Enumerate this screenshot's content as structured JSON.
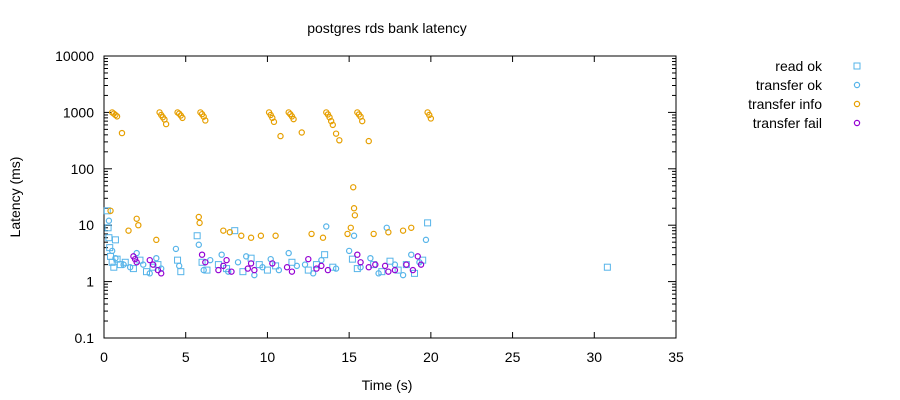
{
  "chart_data": {
    "type": "scatter",
    "title": "postgres rds bank latency",
    "xlabel": "Time (s)",
    "ylabel": "Latency (ms)",
    "xlim": [
      0,
      35
    ],
    "ylim": [
      0.1,
      10000
    ],
    "yscale": "log",
    "xticks": [
      0,
      5,
      10,
      15,
      20,
      25,
      30,
      35
    ],
    "yticks": [
      0.1,
      1,
      10,
      100,
      1000,
      10000
    ],
    "ytick_labels": [
      "0.1",
      "1",
      "10",
      "100",
      "1000",
      "10000"
    ],
    "grid": false,
    "legend_position": "top-right-outside",
    "series": [
      {
        "name": "read ok",
        "marker": "square",
        "color": "#56b4e9",
        "points": [
          [
            0.2,
            18
          ],
          [
            0.25,
            9
          ],
          [
            0.3,
            6
          ],
          [
            0.35,
            4
          ],
          [
            0.4,
            2.8
          ],
          [
            0.5,
            2.2
          ],
          [
            0.6,
            1.8
          ],
          [
            0.7,
            5.5
          ],
          [
            0.8,
            2.5
          ],
          [
            1.0,
            2.0
          ],
          [
            1.3,
            2.2
          ],
          [
            1.8,
            1.7
          ],
          [
            2.2,
            2.4
          ],
          [
            2.6,
            1.5
          ],
          [
            3.0,
            1.8
          ],
          [
            3.3,
            2.0
          ],
          [
            4.5,
            2.4
          ],
          [
            4.7,
            1.5
          ],
          [
            5.7,
            6.5
          ],
          [
            6.0,
            2.2
          ],
          [
            6.3,
            1.6
          ],
          [
            7.0,
            2.0
          ],
          [
            7.5,
            1.7
          ],
          [
            8.0,
            8.0
          ],
          [
            8.5,
            1.5
          ],
          [
            9.0,
            2.6
          ],
          [
            9.5,
            2.0
          ],
          [
            10.0,
            1.6
          ],
          [
            10.5,
            1.9
          ],
          [
            11.5,
            2.2
          ],
          [
            12.5,
            1.6
          ],
          [
            13.0,
            2.0
          ],
          [
            13.5,
            3.0
          ],
          [
            14.0,
            1.8
          ],
          [
            15.2,
            2.5
          ],
          [
            15.5,
            1.7
          ],
          [
            16.5,
            2.0
          ],
          [
            17.0,
            1.5
          ],
          [
            17.5,
            2.3
          ],
          [
            18.0,
            1.6
          ],
          [
            18.5,
            2.0
          ],
          [
            19.0,
            1.4
          ],
          [
            19.5,
            2.4
          ],
          [
            19.8,
            11
          ],
          [
            30.8,
            1.8
          ]
        ]
      },
      {
        "name": "transfer ok",
        "marker": "circle",
        "color": "#56b4e9",
        "points": [
          [
            0.3,
            12
          ],
          [
            0.5,
            3.5
          ],
          [
            0.7,
            2.6
          ],
          [
            1.2,
            2.0
          ],
          [
            1.6,
            1.8
          ],
          [
            2.0,
            3.2
          ],
          [
            2.4,
            2.0
          ],
          [
            2.8,
            1.4
          ],
          [
            3.2,
            2.6
          ],
          [
            3.5,
            1.7
          ],
          [
            4.4,
            3.8
          ],
          [
            4.6,
            1.9
          ],
          [
            5.8,
            4.5
          ],
          [
            6.1,
            1.6
          ],
          [
            6.5,
            2.4
          ],
          [
            7.2,
            3.0
          ],
          [
            7.6,
            1.5
          ],
          [
            8.2,
            2.2
          ],
          [
            8.7,
            2.8
          ],
          [
            9.2,
            1.3
          ],
          [
            9.7,
            1.8
          ],
          [
            10.2,
            2.5
          ],
          [
            10.7,
            1.6
          ],
          [
            11.3,
            3.2
          ],
          [
            11.8,
            1.9
          ],
          [
            12.3,
            2.0
          ],
          [
            12.8,
            1.4
          ],
          [
            13.3,
            2.4
          ],
          [
            13.6,
            9.5
          ],
          [
            14.2,
            1.7
          ],
          [
            15.0,
            3.5
          ],
          [
            15.3,
            6.5
          ],
          [
            15.7,
            1.8
          ],
          [
            16.3,
            2.6
          ],
          [
            16.8,
            1.4
          ],
          [
            17.3,
            9.0
          ],
          [
            17.8,
            2.0
          ],
          [
            18.3,
            1.3
          ],
          [
            18.8,
            3.0
          ],
          [
            19.3,
            2.2
          ],
          [
            19.7,
            5.5
          ]
        ]
      },
      {
        "name": "transfer info",
        "marker": "circle",
        "color": "#e69f00",
        "points": [
          [
            0.4,
            18
          ],
          [
            0.5,
            1000
          ],
          [
            0.6,
            950
          ],
          [
            0.7,
            900
          ],
          [
            0.8,
            850
          ],
          [
            1.1,
            430
          ],
          [
            1.5,
            8
          ],
          [
            2.0,
            13
          ],
          [
            2.1,
            10
          ],
          [
            3.2,
            5.5
          ],
          [
            3.4,
            1000
          ],
          [
            3.5,
            900
          ],
          [
            3.6,
            820
          ],
          [
            3.7,
            750
          ],
          [
            3.8,
            620
          ],
          [
            4.5,
            1000
          ],
          [
            4.6,
            950
          ],
          [
            4.7,
            880
          ],
          [
            4.8,
            800
          ],
          [
            5.8,
            14
          ],
          [
            5.85,
            11
          ],
          [
            5.9,
            1000
          ],
          [
            6.0,
            930
          ],
          [
            6.1,
            840
          ],
          [
            6.2,
            720
          ],
          [
            7.3,
            8
          ],
          [
            7.7,
            7.5
          ],
          [
            8.4,
            6.5
          ],
          [
            9.0,
            6
          ],
          [
            9.6,
            6.5
          ],
          [
            10.1,
            1000
          ],
          [
            10.2,
            900
          ],
          [
            10.3,
            800
          ],
          [
            10.4,
            680
          ],
          [
            10.5,
            6.5
          ],
          [
            10.8,
            380
          ],
          [
            11.3,
            1000
          ],
          [
            11.4,
            930
          ],
          [
            11.5,
            850
          ],
          [
            11.6,
            760
          ],
          [
            12.1,
            440
          ],
          [
            12.7,
            7
          ],
          [
            13.4,
            6
          ],
          [
            13.6,
            1000
          ],
          [
            13.7,
            920
          ],
          [
            13.8,
            820
          ],
          [
            13.9,
            700
          ],
          [
            14.0,
            600
          ],
          [
            14.2,
            420
          ],
          [
            14.4,
            320
          ],
          [
            14.9,
            7
          ],
          [
            15.1,
            9
          ],
          [
            15.25,
            47
          ],
          [
            15.3,
            20
          ],
          [
            15.35,
            15
          ],
          [
            15.5,
            1000
          ],
          [
            15.6,
            920
          ],
          [
            15.7,
            840
          ],
          [
            15.8,
            700
          ],
          [
            16.2,
            310
          ],
          [
            16.5,
            7
          ],
          [
            17.4,
            7.5
          ],
          [
            18.3,
            8
          ],
          [
            18.8,
            9
          ],
          [
            19.8,
            1000
          ],
          [
            19.9,
            900
          ],
          [
            20.0,
            780
          ]
        ]
      },
      {
        "name": "transfer fail",
        "marker": "circle",
        "color": "#9400d3",
        "points": [
          [
            1.8,
            2.8
          ],
          [
            1.9,
            2.5
          ],
          [
            2.0,
            2.2
          ],
          [
            2.8,
            2.4
          ],
          [
            3.0,
            2.0
          ],
          [
            3.3,
            1.6
          ],
          [
            3.5,
            1.4
          ],
          [
            6.0,
            3.0
          ],
          [
            6.2,
            2.2
          ],
          [
            7.0,
            1.6
          ],
          [
            7.3,
            1.9
          ],
          [
            7.5,
            2.4
          ],
          [
            7.8,
            1.5
          ],
          [
            8.8,
            1.7
          ],
          [
            9.0,
            2.1
          ],
          [
            9.2,
            1.6
          ],
          [
            10.3,
            2.1
          ],
          [
            11.2,
            1.8
          ],
          [
            11.5,
            1.5
          ],
          [
            12.5,
            2.5
          ],
          [
            13.0,
            1.7
          ],
          [
            13.3,
            1.9
          ],
          [
            13.7,
            1.6
          ],
          [
            15.5,
            3.0
          ],
          [
            15.7,
            2.2
          ],
          [
            16.2,
            1.8
          ],
          [
            16.6,
            2.0
          ],
          [
            17.2,
            1.9
          ],
          [
            17.4,
            1.5
          ],
          [
            17.8,
            1.6
          ],
          [
            18.5,
            2.0
          ],
          [
            18.9,
            1.6
          ],
          [
            19.2,
            2.8
          ],
          [
            19.4,
            2.0
          ]
        ]
      }
    ]
  }
}
